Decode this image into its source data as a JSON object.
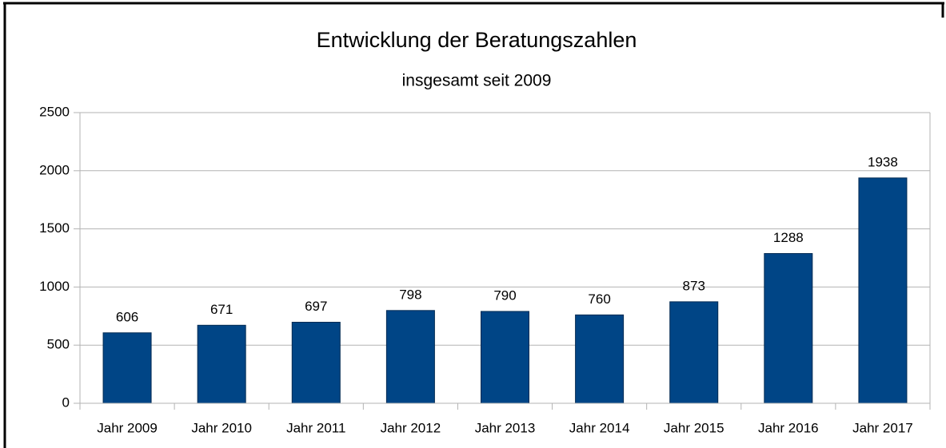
{
  "chart_data": {
    "type": "bar",
    "title": "Entwicklung der Beratungszahlen",
    "subtitle": "insgesamt seit 2009",
    "categories": [
      "Jahr 2009",
      "Jahr 2010",
      "Jahr 2011",
      "Jahr 2012",
      "Jahr 2013",
      "Jahr 2014",
      "Jahr 2015",
      "Jahr 2016",
      "Jahr 2017"
    ],
    "values": [
      606,
      671,
      697,
      798,
      790,
      760,
      873,
      1288,
      1938
    ],
    "color": "#004586",
    "ylim": [
      0,
      2500
    ],
    "yticks": [
      0,
      500,
      1000,
      1500,
      2000,
      2500
    ],
    "grid": true
  }
}
